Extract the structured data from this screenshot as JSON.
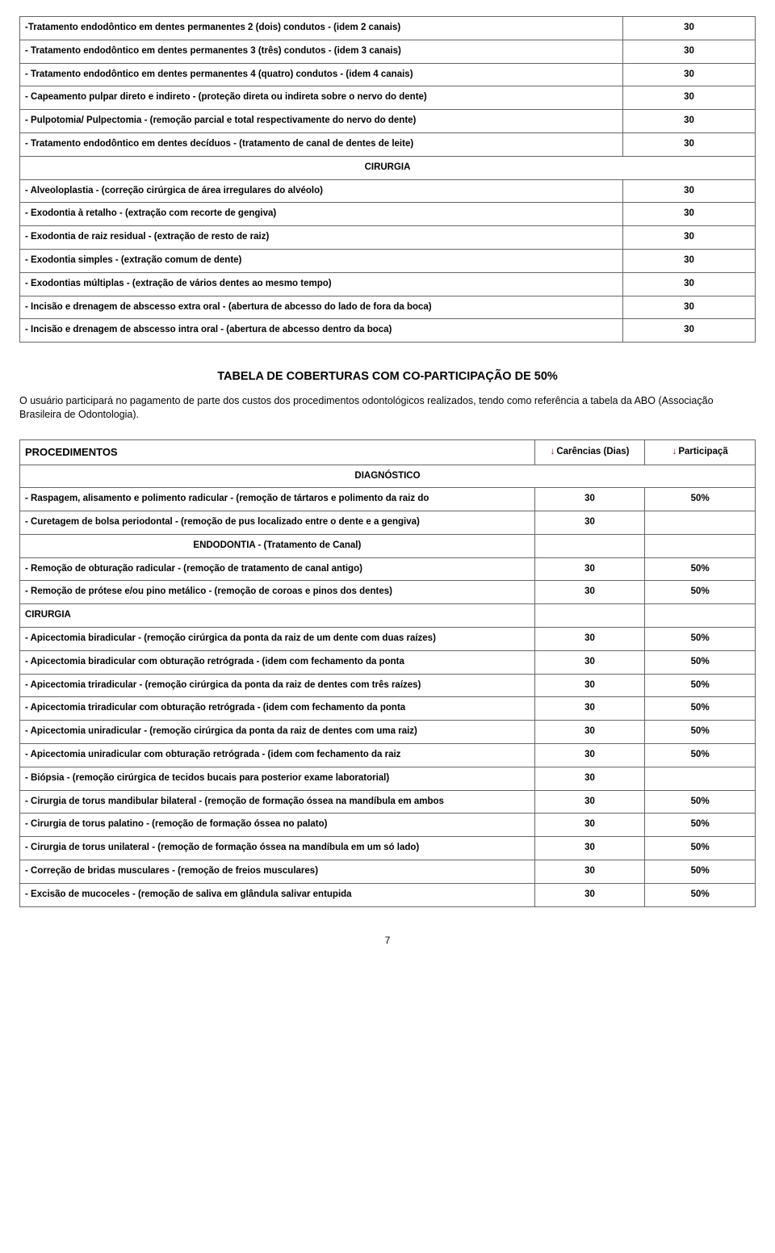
{
  "table1": {
    "colwidths": [
      "82%",
      "18%"
    ],
    "rows": [
      {
        "label": "-Tratamento endodôntico em dentes permanentes 2 (dois) condutos - (idem 2 canais)",
        "val": "30",
        "bold": true
      },
      {
        "label": "- Tratamento endodôntico em dentes permanentes 3 (três) condutos - (idem 3 canais)",
        "val": "30",
        "bold": true
      },
      {
        "label": "- Tratamento endodôntico em dentes permanentes 4 (quatro) condutos - (idem 4 canais)",
        "val": "30",
        "bold": true
      },
      {
        "label": "- Capeamento pulpar direto e indireto - (proteção direta ou indireta sobre o nervo do dente)",
        "val": "30",
        "bold": true
      },
      {
        "label": "- Pulpotomia/ Pulpectomia - (remoção parcial e total respectivamente do nervo do dente)",
        "val": "30",
        "bold": true
      },
      {
        "label": "- Tratamento endodôntico em dentes decíduos - (tratamento de canal de dentes de leite)",
        "val": "30",
        "bold": true
      },
      {
        "label": "CIRURGIA",
        "val": "",
        "bold": true,
        "span": true,
        "center": true
      },
      {
        "label": "- Alveoloplastia - (correção cirúrgica de área irregulares do alvéolo)",
        "val": "30",
        "bold": true
      },
      {
        "label": "- Exodontia à retalho - (extração com recorte de gengiva)",
        "val": "30",
        "bold": true
      },
      {
        "label": "- Exodontia de raiz residual  - (extração de resto de raiz)",
        "val": "30",
        "bold": true
      },
      {
        "label": "- Exodontia simples - (extração comum de dente)",
        "val": "30",
        "bold": true
      },
      {
        "label": "- Exodontias múltiplas - (extração de vários dentes ao mesmo tempo)",
        "val": "30",
        "bold": true
      },
      {
        "label": "- Incisão e drenagem de abscesso extra oral - (abertura de abcesso do lado de fora da boca)",
        "val": "30",
        "bold": true
      },
      {
        "label": "- Incisão e drenagem de abscesso intra oral - (abertura de abcesso dentro da boca)",
        "val": "30",
        "bold": true
      }
    ]
  },
  "sectionTitle": "TABELA DE COBERTURAS COM CO-PARTICIPAÇÃO DE 50%",
  "bodyText": "O usuário participará no pagamento de parte dos custos dos procedimentos odontológicos realizados, tendo como referência a tabela da ABO (Associação Brasileira de Odontologia).",
  "table2": {
    "header": {
      "c1": "PROCEDIMENTOS",
      "c2": "Carências (Dias)",
      "c3": "Participaçã"
    },
    "rows": [
      {
        "type": "diag",
        "label": "DIAGNÓSTICO"
      },
      {
        "label": "- Raspagem, alisamento e polimento radicular - (remoção de tártaros e polimento da raiz do",
        "v1": "30",
        "v2": "50%"
      },
      {
        "label": "- Curetagem de bolsa periodontal - (remoção de pus localizado entre o dente e a gengiva)",
        "v1": "30",
        "v2": ""
      },
      {
        "type": "sub",
        "label": "ENDODONTIA - (Tratamento de Canal)"
      },
      {
        "label": "- Remoção de obturação radicular - (remoção de tratamento de canal antigo)",
        "v1": "30",
        "v2": "50%"
      },
      {
        "label": "- Remoção de prótese e/ou pino metálico - (remoção de coroas e pinos dos dentes)",
        "v1": "30",
        "v2": "50%"
      },
      {
        "label": "CIRURGIA",
        "v1": "",
        "v2": "",
        "noBold": false,
        "left": true,
        "boldLabel": true
      },
      {
        "label": "- Apicectomia biradicular - (remoção cirúrgica da ponta da raiz de um dente com duas raízes)",
        "v1": "30",
        "v2": "50%"
      },
      {
        "label": "- Apicectomia biradicular com obturação retrógrada - (idem com fechamento da ponta",
        "v1": "30",
        "v2": "50%"
      },
      {
        "label": "- Apicectomia triradicular - (remoção cirúrgica da ponta da raiz de dentes com três raízes)",
        "v1": "30",
        "v2": "50%"
      },
      {
        "label": "- Apicectomia triradicular com obturação retrógrada - (idem com fechamento da ponta",
        "v1": "30",
        "v2": "50%"
      },
      {
        "label": "- Apicectomia uniradicular - (remoção cirúrgica da ponta da raiz de dentes com uma raiz)",
        "v1": "30",
        "v2": "50%"
      },
      {
        "label": "- Apicectomia uniradicular com obturação retrógrada - (idem com fechamento da raiz",
        "v1": "30",
        "v2": "50%"
      },
      {
        "label": "- Biópsia - (remoção cirúrgica de tecidos bucais para posterior exame laboratorial)",
        "v1": "30",
        "v2": ""
      },
      {
        "label": "- Cirurgia de torus mandibular bilateral - (remoção de formação óssea na mandíbula em ambos",
        "v1": "30",
        "v2": "50%"
      },
      {
        "label": "- Cirurgia de torus palatino - (remoção de formação óssea no palato)",
        "v1": "30",
        "v2": "50%"
      },
      {
        "label": "- Cirurgia de torus unilateral - (remoção de formação óssea na mandíbula em um só lado)",
        "v1": "30",
        "v2": "50%"
      },
      {
        "label": "- Correção de bridas musculares - (remoção de freios musculares)",
        "v1": "30",
        "v2": "50%"
      },
      {
        "label": "- Excisão de mucoceles - (remoção de saliva em glândula salivar entupida",
        "v1": "30",
        "v2": "50%"
      }
    ]
  },
  "pageNum": "7"
}
